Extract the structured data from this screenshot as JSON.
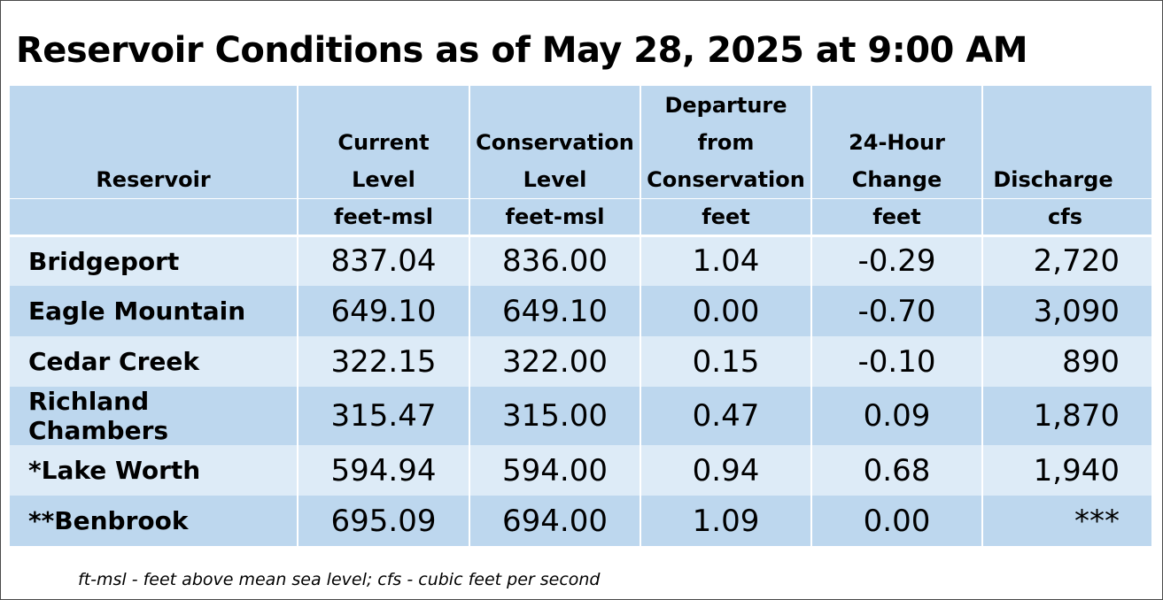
{
  "title": "Reservoir Conditions as of May 28, 2025 at 9:00 AM",
  "table": {
    "headers": [
      [
        "Reservoir"
      ],
      [
        "Current",
        "Level"
      ],
      [
        "Conservation",
        "Level"
      ],
      [
        "Departure",
        "from",
        "Conservation"
      ],
      [
        "24-Hour",
        "Change"
      ],
      [
        "Discharge"
      ]
    ],
    "units": [
      "",
      "feet-msl",
      "feet-msl",
      "feet",
      "feet",
      "cfs"
    ],
    "rows": [
      [
        "Bridgeport",
        "837.04",
        "836.00",
        "1.04",
        "-0.29",
        "2,720"
      ],
      [
        "Eagle Mountain",
        "649.10",
        "649.10",
        "0.00",
        "-0.70",
        "3,090"
      ],
      [
        "Cedar Creek",
        "322.15",
        "322.00",
        "0.15",
        "-0.10",
        "890"
      ],
      [
        "Richland Chambers",
        "315.47",
        "315.00",
        "0.47",
        "0.09",
        "1,870"
      ],
      [
        "*Lake Worth",
        "594.94",
        "594.00",
        "0.94",
        "0.68",
        "1,940"
      ],
      [
        "**Benbrook",
        "695.09",
        "694.00",
        "1.09",
        "0.00",
        "***"
      ]
    ]
  },
  "footnote": "ft-msl - feet above mean sea level; cfs - cubic feet per second",
  "colors": {
    "header_bg": "#bdd7ee",
    "row_light": "#ddebf7",
    "row_dark": "#bdd7ee"
  }
}
